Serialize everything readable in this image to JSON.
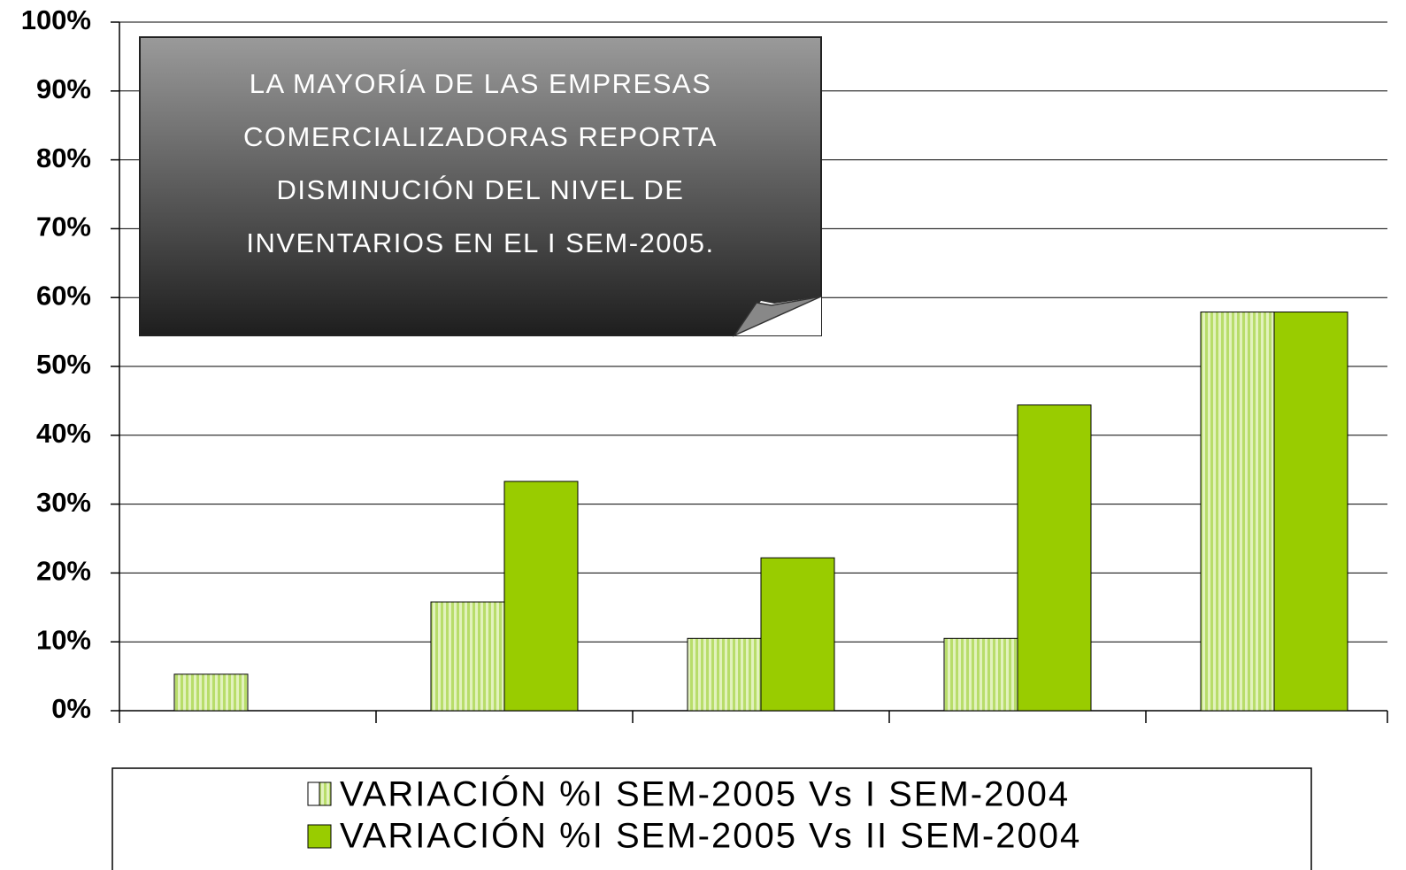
{
  "chart_data": {
    "type": "bar",
    "annotation": [
      "LA MAYORÍA DE LAS EMPRESAS",
      "COMERCIALIZADORAS REPORTA",
      "DISMINUCIÓN DEL NIVEL DE",
      "INVENTARIOS EN EL I SEM-2005."
    ],
    "categories": [
      null,
      null,
      null,
      null,
      null
    ],
    "series": [
      {
        "name": "VARIACIÓN %I SEM-2005 Vs I SEM-2004",
        "color": "#c8e68a",
        "values": [
          5.3,
          15.8,
          10.5,
          10.5,
          57.9
        ]
      },
      {
        "name": "VARIACIÓN %I SEM-2005 Vs II SEM-2004",
        "color": "#99cc00",
        "values": [
          null,
          33.3,
          22.2,
          44.4,
          57.9
        ]
      }
    ],
    "ylim": [
      0,
      100
    ],
    "yticks": [
      {
        "value": 0,
        "label": "0%"
      },
      {
        "value": 10,
        "label": "10%"
      },
      {
        "value": 20,
        "label": "20%"
      },
      {
        "value": 30,
        "label": "30%"
      },
      {
        "value": 40,
        "label": "40%"
      },
      {
        "value": 50,
        "label": "50%"
      },
      {
        "value": 60,
        "label": "60%"
      },
      {
        "value": 70,
        "label": "70%"
      },
      {
        "value": 80,
        "label": "80%"
      },
      {
        "value": 90,
        "label": "90%"
      },
      {
        "value": 100,
        "label": "100%"
      }
    ],
    "grid": true
  }
}
